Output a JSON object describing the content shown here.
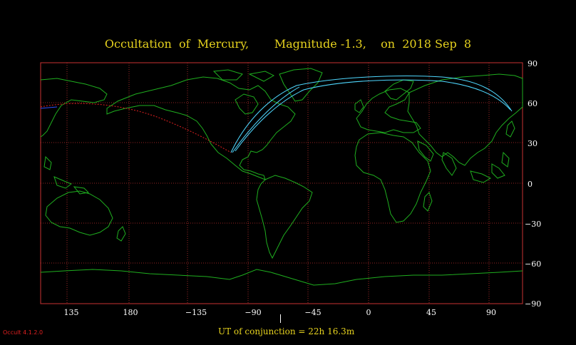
{
  "title": "Occultation  of  Mercury,       Magnitude -1.3,    on  2018 Sep  8",
  "lat_labels": [
    "90",
    "60",
    "30",
    "0",
    "−30",
    "−60",
    "−90"
  ],
  "lon_labels": [
    "135",
    "180",
    "−135",
    "−90",
    "−45",
    "0",
    "45",
    "90"
  ],
  "ut_text": "UT of conjunction = 22h 16.3m",
  "version": "Occult 4.1.2.0",
  "colors": {
    "title": "#e6d21e",
    "grid": "#c83232",
    "coast": "#1fae1f",
    "path": "#4fd8ff",
    "path_below_horizon": "#e02020"
  }
}
